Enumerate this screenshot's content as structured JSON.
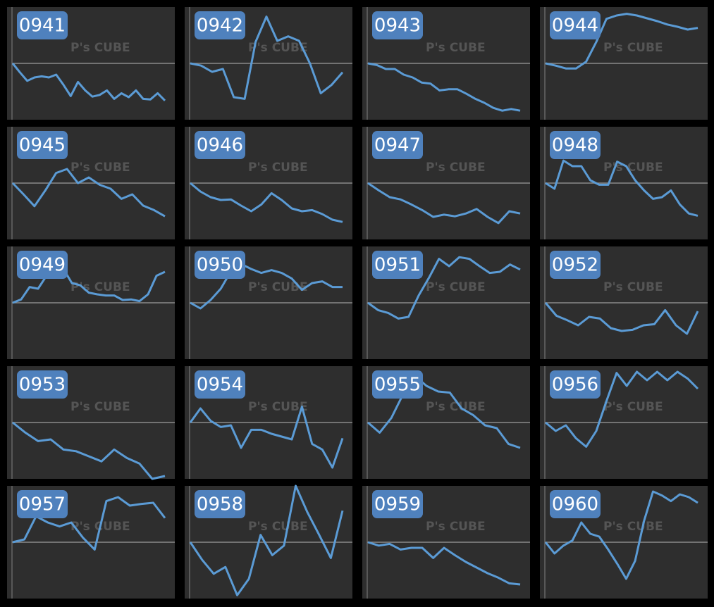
{
  "watermark": "P's CUBE",
  "chart_data": [
    {
      "type": "line",
      "title": "0941",
      "color": "#5b9bd5",
      "ylim": [
        -10,
        10
      ],
      "baseline": 0,
      "values": [
        0,
        -1.6,
        -3.1,
        -2.5,
        -2.3,
        -2.5,
        -2,
        -3.8,
        -5.8,
        -3.3,
        -4.8,
        -5.9,
        -5.6,
        -4.8,
        -6.3,
        -5.3,
        -6,
        -4.8,
        -6.3,
        -6.4,
        -5.3,
        -6.6
      ]
    },
    {
      "type": "line",
      "title": "0942",
      "color": "#5b9bd5",
      "ylim": [
        -10,
        10
      ],
      "baseline": 0,
      "values": [
        0,
        -0.4,
        -1.5,
        -1,
        -6,
        -6.3,
        3.8,
        8.3,
        4,
        4.8,
        4,
        0,
        -5.3,
        -3.8,
        -1.6
      ]
    },
    {
      "type": "line",
      "title": "0943",
      "color": "#5b9bd5",
      "ylim": [
        -10,
        10
      ],
      "baseline": 0,
      "values": [
        0,
        -0.3,
        -1,
        -1,
        -2,
        -2.5,
        -3.4,
        -3.6,
        -4.8,
        -4.6,
        -4.6,
        -5.4,
        -6.3,
        -7,
        -7.9,
        -8.4,
        -8.1,
        -8.4
      ]
    },
    {
      "type": "line",
      "title": "0944",
      "color": "#5b9bd5",
      "ylim": [
        -10,
        10
      ],
      "baseline": 0,
      "values": [
        0,
        -0.4,
        -0.9,
        -0.9,
        0.3,
        3.8,
        7.9,
        8.5,
        8.8,
        8.5,
        8,
        7.5,
        6.9,
        6.5,
        6,
        6.3
      ]
    },
    {
      "type": "line",
      "title": "0945",
      "color": "#5b9bd5",
      "ylim": [
        -10,
        10
      ],
      "baseline": 0,
      "values": [
        0,
        -2,
        -4.1,
        -1.3,
        1.8,
        2.5,
        0,
        1,
        -0.3,
        -1,
        -2.8,
        -2,
        -4,
        -4.8,
        -5.9
      ]
    },
    {
      "type": "line",
      "title": "0946",
      "color": "#5b9bd5",
      "ylim": [
        -10,
        10
      ],
      "baseline": 0,
      "values": [
        0,
        -1.5,
        -2.5,
        -3,
        -2.9,
        -4,
        -5,
        -3.8,
        -1.8,
        -3,
        -4.5,
        -5,
        -4.8,
        -5.5,
        -6.5,
        -6.9
      ]
    },
    {
      "type": "line",
      "title": "0947",
      "color": "#5b9bd5",
      "ylim": [
        -10,
        10
      ],
      "baseline": 0,
      "values": [
        0,
        -1.3,
        -2.5,
        -2.9,
        -3.8,
        -4.8,
        -6,
        -5.6,
        -5.9,
        -5.4,
        -4.6,
        -6,
        -7.1,
        -5,
        -5.4
      ]
    },
    {
      "type": "line",
      "title": "0948",
      "color": "#5b9bd5",
      "ylim": [
        -10,
        10
      ],
      "baseline": 0,
      "values": [
        0,
        -1,
        4,
        3,
        3,
        0.5,
        -0.3,
        -0.3,
        3.8,
        3,
        0.5,
        -1.3,
        -2.8,
        -2.5,
        -1.3,
        -3.8,
        -5.4,
        -5.8
      ]
    },
    {
      "type": "line",
      "title": "0949",
      "color": "#5b9bd5",
      "ylim": [
        -10,
        10
      ],
      "baseline": 0,
      "values": [
        0,
        0.6,
        2.8,
        2.5,
        4.8,
        5.6,
        6,
        3.5,
        3.1,
        1.8,
        1.5,
        1.3,
        1.3,
        0.5,
        0.6,
        0.3,
        1.5,
        4.8,
        5.5
      ]
    },
    {
      "type": "line",
      "title": "0950",
      "color": "#5b9bd5",
      "ylim": [
        -10,
        10
      ],
      "baseline": 0,
      "values": [
        0,
        -1,
        0.5,
        2.5,
        5.6,
        6.9,
        6,
        5.3,
        5.8,
        5.3,
        4.3,
        2.3,
        3.5,
        3.8,
        2.8,
        2.8
      ]
    },
    {
      "type": "line",
      "title": "0951",
      "color": "#5b9bd5",
      "ylim": [
        -10,
        10
      ],
      "baseline": 0,
      "values": [
        0,
        -1.3,
        -1.8,
        -2.8,
        -2.5,
        1.3,
        4.4,
        7.8,
        6.5,
        8.1,
        7.8,
        6.5,
        5.3,
        5.5,
        6.8,
        5.9
      ]
    },
    {
      "type": "line",
      "title": "0952",
      "color": "#5b9bd5",
      "ylim": [
        -10,
        10
      ],
      "baseline": 0,
      "values": [
        0,
        -2.3,
        -3.1,
        -4,
        -2.5,
        -2.8,
        -4.5,
        -5,
        -4.8,
        -4,
        -3.8,
        -1.3,
        -4,
        -5.5,
        -1.5
      ]
    },
    {
      "type": "line",
      "title": "0953",
      "color": "#5b9bd5",
      "ylim": [
        -10,
        10
      ],
      "baseline": 0,
      "values": [
        0,
        -1.8,
        -3.3,
        -3,
        -4.8,
        -5.1,
        -6,
        -6.9,
        -4.8,
        -6.3,
        -7.3,
        -10,
        -9.5
      ]
    },
    {
      "type": "line",
      "title": "0954",
      "color": "#5b9bd5",
      "ylim": [
        -10,
        10
      ],
      "baseline": 0,
      "values": [
        0,
        2.5,
        0.3,
        -0.8,
        -0.5,
        -4.5,
        -1.3,
        -1.3,
        -2,
        -2.5,
        -3,
        2.8,
        -3.8,
        -4.8,
        -8,
        -2.8
      ]
    },
    {
      "type": "line",
      "title": "0955",
      "color": "#5b9bd5",
      "ylim": [
        -10,
        10
      ],
      "baseline": 0,
      "values": [
        0,
        -1.8,
        0.8,
        5,
        8.3,
        6.5,
        5.5,
        5.3,
        2.5,
        1.3,
        -0.5,
        -1,
        -3.8,
        -4.5
      ]
    },
    {
      "type": "line",
      "title": "0956",
      "color": "#5b9bd5",
      "ylim": [
        -10,
        10
      ],
      "baseline": 0,
      "values": [
        0,
        -1.5,
        -0.5,
        -2.8,
        -4.3,
        -1.5,
        3.8,
        8.8,
        6.5,
        9,
        7.5,
        9,
        7.5,
        9,
        7.8,
        6
      ]
    },
    {
      "type": "line",
      "title": "0957",
      "color": "#5b9bd5",
      "ylim": [
        -10,
        10
      ],
      "baseline": 0,
      "values": [
        0,
        0.5,
        4.6,
        3.5,
        2.8,
        3.5,
        0.8,
        -1.3,
        7.3,
        8,
        6.5,
        6.8,
        7,
        4.3
      ]
    },
    {
      "type": "line",
      "title": "0958",
      "color": "#5b9bd5",
      "ylim": [
        -10,
        10
      ],
      "baseline": 0,
      "values": [
        0,
        -3.1,
        -5.6,
        -4.4,
        -9.4,
        -6.5,
        1.3,
        -2.3,
        -0.6,
        10,
        5.3,
        1.3,
        -2.8,
        5.6
      ]
    },
    {
      "type": "line",
      "title": "0959",
      "color": "#5b9bd5",
      "ylim": [
        -10,
        10
      ],
      "baseline": 0,
      "values": [
        0,
        -0.6,
        -0.3,
        -1.3,
        -1,
        -1,
        -2.8,
        -1,
        -2.3,
        -3.5,
        -4.5,
        -5.5,
        -6.3,
        -7.3,
        -7.5
      ]
    },
    {
      "type": "line",
      "title": "0960",
      "color": "#5b9bd5",
      "ylim": [
        -10,
        10
      ],
      "baseline": 0,
      "values": [
        0,
        -2,
        -0.6,
        0.3,
        3.5,
        1.5,
        1,
        -1.3,
        -3.8,
        -6.5,
        -3.3,
        3.8,
        9,
        8.3,
        7.3,
        8.5,
        8,
        7
      ]
    }
  ]
}
